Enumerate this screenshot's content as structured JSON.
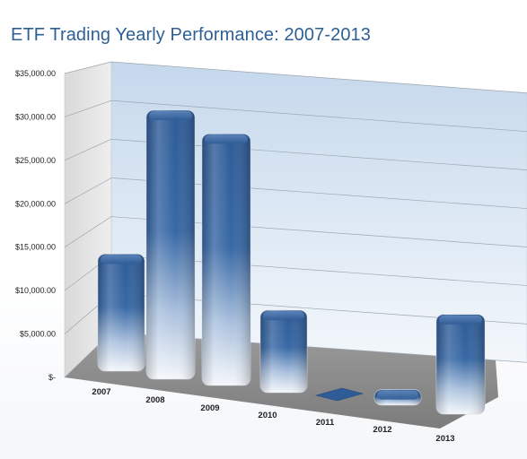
{
  "title": "ETF Trading Yearly Performance: 2007-2013",
  "chart_data": {
    "type": "bar",
    "title": "ETF Trading Yearly Performance: 2007-2013",
    "categories": [
      "2007",
      "2008",
      "2009",
      "2010",
      "2011",
      "2012",
      "2013"
    ],
    "values": [
      13500,
      31000,
      29000,
      9500,
      0,
      1800,
      11500
    ],
    "ylim": [
      0,
      35000
    ],
    "yticks": [
      {
        "value": 0,
        "label": "$-"
      },
      {
        "value": 5000,
        "label": "$5,000.00"
      },
      {
        "value": 10000,
        "label": "$10,000.00"
      },
      {
        "value": 15000,
        "label": "$15,000.00"
      },
      {
        "value": 20000,
        "label": "$20,000.00"
      },
      {
        "value": 25000,
        "label": "$25,000.00"
      },
      {
        "value": 30000,
        "label": "$30,000.00"
      },
      {
        "value": 35000,
        "label": "$35,000.00"
      }
    ],
    "xlabel": "",
    "ylabel": "",
    "grid": true,
    "legend": "none",
    "style": "3d-perspective",
    "colors": {
      "bar_top": "#2f5e9b",
      "bar_bottom": "#f2f6fb",
      "wall_top": "#c5d8ec",
      "wall_bottom": "#f3f7fb",
      "floor": "#8f8f8f",
      "grid": "#9ea7b2",
      "title": "#2e5f95"
    }
  }
}
